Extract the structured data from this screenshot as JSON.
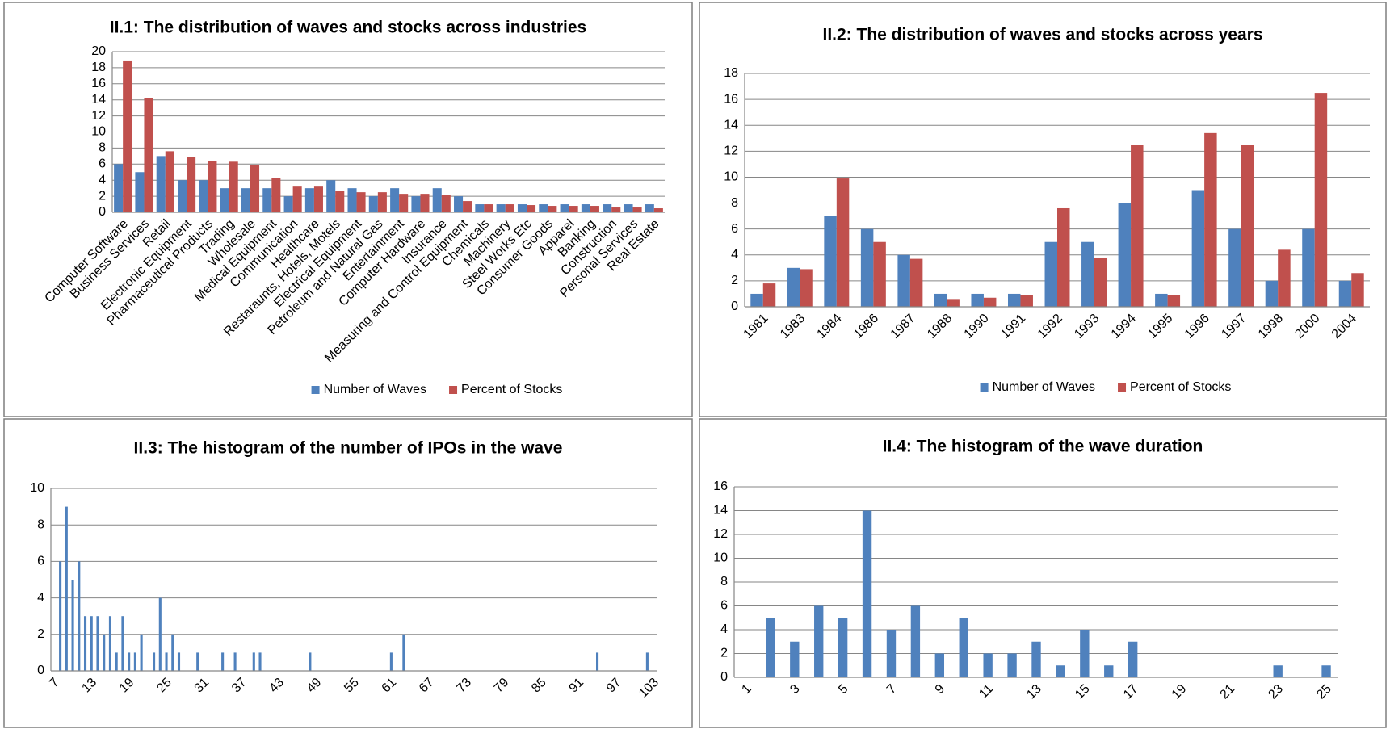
{
  "chart_data": [
    {
      "type": "bar",
      "title": "II.1: The distribution of waves and stocks across industries",
      "categories": [
        "Computer Software",
        "Business Services",
        "Retail",
        "Electronic Equipment",
        "Pharmaceutical Products",
        "Trading",
        "Wholesale",
        "Medical Equipment",
        "Communication",
        "Healthcare",
        "Restaraunts, Hotels, Motels",
        "Electrical Equipment",
        "Petroleum and Natural Gas",
        "Entertainment",
        "Computer Hardware",
        "Insurance",
        "Measuring and Control Equipment",
        "Chemicals",
        "Machinery",
        "Steel Works Etc",
        "Consumer Goods",
        "Apparel",
        "Banking",
        "Construction",
        "Personal Services",
        "Real Estate"
      ],
      "series": [
        {
          "name": "Number of Waves",
          "color": "#4f81bd",
          "values": [
            6,
            5,
            7,
            4,
            4,
            3,
            3,
            3,
            2,
            3,
            4,
            3,
            2,
            3,
            2,
            3,
            2,
            1,
            1,
            1,
            1,
            1,
            1,
            1,
            1,
            1
          ]
        },
        {
          "name": "Percent of Stocks",
          "color": "#c0504d",
          "values": [
            18.9,
            14.2,
            7.6,
            6.9,
            6.4,
            6.3,
            5.9,
            4.3,
            3.2,
            3.2,
            2.7,
            2.5,
            2.5,
            2.3,
            2.3,
            2.2,
            1.4,
            1,
            1,
            0.9,
            0.8,
            0.8,
            0.8,
            0.6,
            0.6,
            0.5
          ]
        }
      ],
      "ylim": [
        0,
        20
      ],
      "yticks": [
        0,
        2,
        4,
        6,
        8,
        10,
        12,
        14,
        16,
        18,
        20
      ],
      "grid": true,
      "legend": "bottom"
    },
    {
      "type": "bar",
      "title": "II.2: The distribution of waves and stocks across years",
      "categories": [
        "1981",
        "1983",
        "1984",
        "1986",
        "1987",
        "1988",
        "1990",
        "1991",
        "1992",
        "1993",
        "1994",
        "1995",
        "1996",
        "1997",
        "1998",
        "2000",
        "2004"
      ],
      "series": [
        {
          "name": "Number of Waves",
          "color": "#4f81bd",
          "values": [
            1,
            3,
            7,
            6,
            4,
            1,
            1,
            1,
            5,
            5,
            8,
            1,
            9,
            6,
            2,
            6,
            2
          ]
        },
        {
          "name": "Percent of Stocks",
          "color": "#c0504d",
          "values": [
            1.8,
            2.9,
            9.9,
            5.0,
            3.7,
            0.6,
            0.7,
            0.9,
            7.6,
            3.8,
            12.5,
            0.9,
            13.4,
            12.5,
            4.4,
            16.5,
            2.6
          ]
        }
      ],
      "ylim": [
        0,
        18
      ],
      "yticks": [
        0,
        2,
        4,
        6,
        8,
        10,
        12,
        14,
        16,
        18
      ],
      "grid": true,
      "legend": "bottom"
    },
    {
      "type": "bar",
      "title": "II.3: The histogram of the number of IPOs in the wave",
      "categories": [
        7,
        null,
        null,
        null,
        null,
        null,
        13,
        null,
        null,
        null,
        null,
        null,
        19,
        null,
        null,
        null,
        null,
        null,
        25,
        null,
        null,
        null,
        null,
        null,
        31,
        null,
        null,
        null,
        null,
        null,
        37,
        null,
        null,
        null,
        null,
        null,
        43,
        null,
        null,
        null,
        null,
        null,
        49,
        null,
        null,
        null,
        null,
        null,
        55,
        null,
        null,
        null,
        null,
        null,
        61,
        null,
        null,
        null,
        null,
        null,
        67,
        null,
        null,
        null,
        null,
        null,
        73,
        null,
        null,
        null,
        null,
        null,
        79,
        null,
        null,
        null,
        null,
        null,
        85,
        null,
        null,
        null,
        null,
        null,
        91,
        null,
        null,
        null,
        null,
        null,
        97,
        null,
        null,
        null,
        null,
        null,
        103
      ],
      "values": [
        0,
        6,
        9,
        5,
        6,
        3,
        3,
        3,
        2,
        3,
        1,
        3,
        1,
        1,
        2,
        0,
        1,
        4,
        1,
        2,
        1,
        0,
        0,
        1,
        0,
        0,
        0,
        1,
        0,
        1,
        0,
        0,
        1,
        1,
        0,
        0,
        0,
        0,
        0,
        0,
        0,
        1,
        0,
        0,
        0,
        0,
        0,
        0,
        0,
        0,
        0,
        0,
        0,
        0,
        1,
        0,
        2,
        0,
        0,
        0,
        0,
        0,
        0,
        0,
        0,
        0,
        0,
        0,
        0,
        0,
        0,
        0,
        0,
        0,
        0,
        0,
        0,
        0,
        0,
        0,
        0,
        0,
        0,
        0,
        0,
        0,
        0,
        1,
        0,
        0,
        0,
        0,
        0,
        0,
        0,
        1,
        0
      ],
      "color": "#4f81bd",
      "ylim": [
        0,
        10
      ],
      "yticks": [
        0,
        2,
        4,
        6,
        8,
        10
      ],
      "grid": true
    },
    {
      "type": "bar",
      "title": "II.4: The histogram of the wave duration",
      "categories": [
        1,
        null,
        3,
        null,
        5,
        null,
        7,
        null,
        9,
        null,
        11,
        null,
        13,
        null,
        15,
        null,
        17,
        null,
        19,
        null,
        21,
        null,
        23,
        null,
        25
      ],
      "values": [
        0,
        5,
        3,
        6,
        5,
        14,
        4,
        6,
        2,
        5,
        2,
        2,
        3,
        1,
        4,
        1,
        3,
        0,
        0,
        0,
        0,
        0,
        1,
        0,
        1
      ],
      "color": "#4f81bd",
      "ylim": [
        0,
        16
      ],
      "yticks": [
        0,
        2,
        4,
        6,
        8,
        10,
        12,
        14,
        16
      ],
      "grid": true
    }
  ]
}
